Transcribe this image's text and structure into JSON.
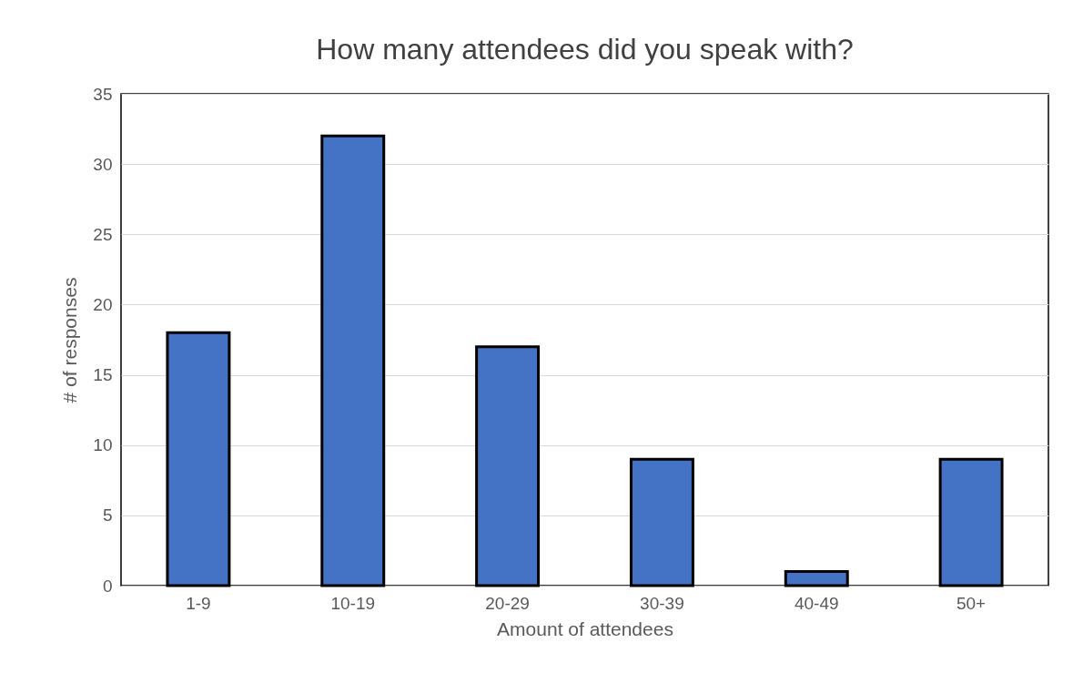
{
  "chart_data": {
    "type": "bar",
    "title": "How many attendees did you speak with?",
    "xlabel": "Amount of attendees",
    "ylabel": "# of responses",
    "categories": [
      "1-9",
      "10-19",
      "20-29",
      "30-39",
      "40-49",
      "50+"
    ],
    "values": [
      18,
      32,
      17,
      9,
      1,
      9
    ],
    "color": "#4472c4",
    "ylim": [
      0,
      35
    ],
    "yticks": [
      0,
      5,
      10,
      15,
      20,
      25,
      30,
      35
    ],
    "grid": "y"
  }
}
